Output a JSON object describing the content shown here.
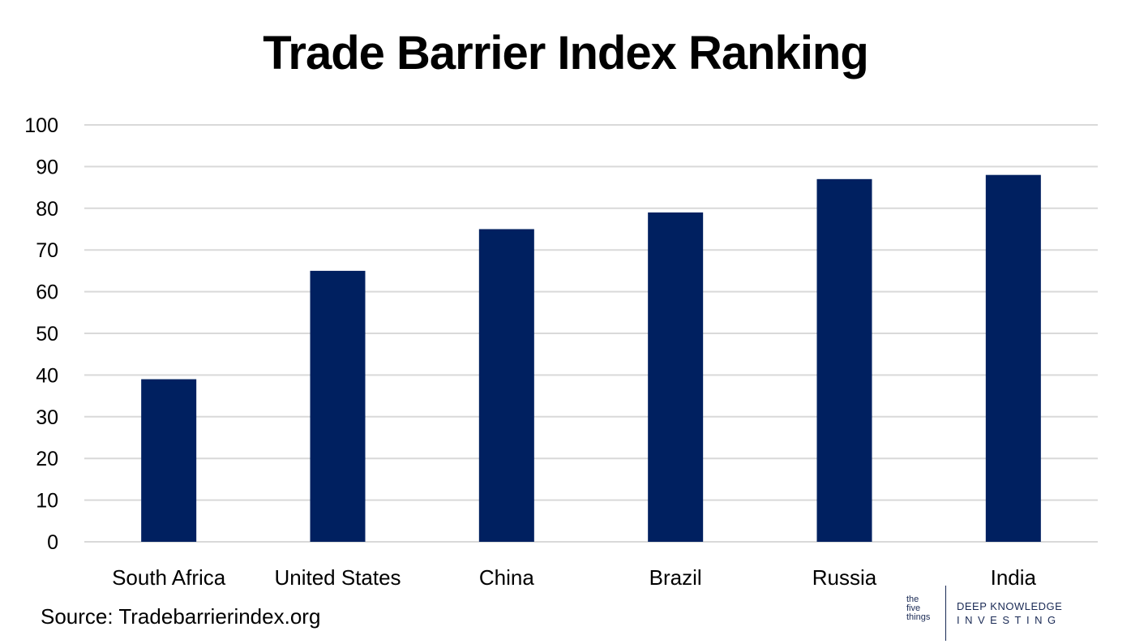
{
  "chart_data": {
    "type": "bar",
    "title": "Trade Barrier Index Ranking",
    "categories": [
      "South Africa",
      "United States",
      "China",
      "Brazil",
      "Russia",
      "India"
    ],
    "values": [
      39,
      65,
      75,
      79,
      87,
      88
    ],
    "ylim": [
      0,
      100
    ],
    "yticks": [
      0,
      10,
      20,
      30,
      40,
      50,
      60,
      70,
      80,
      90,
      100
    ],
    "grid": true,
    "legend": "none",
    "bar_color": "#002060",
    "grid_color": "#d9d9d9"
  },
  "source": "Source: Tradebarrierindex.org",
  "logo": {
    "five_things": [
      "the",
      "five",
      "things"
    ],
    "dki_line1": "DEEP KNOWLEDGE",
    "dki_line2": "INVESTING"
  }
}
